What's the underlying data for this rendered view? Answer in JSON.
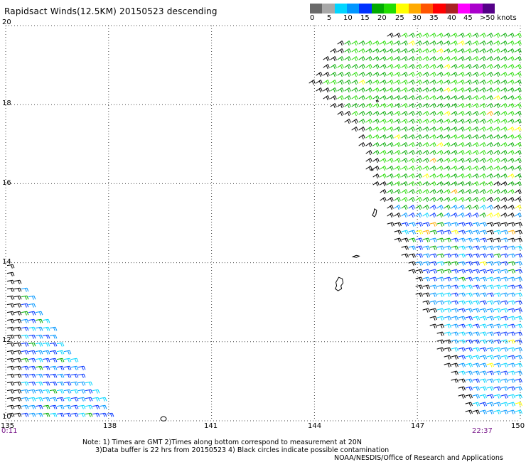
{
  "title": "Rapidsact Winds(12.5KM) 20150523 descending",
  "colorbar": {
    "colors": [
      "#6a6a6a",
      "#a8a8a8",
      "#00d5ff",
      "#0096ff",
      "#0032ff",
      "#00aa00",
      "#22dd00",
      "#ffff00",
      "#ffaa00",
      "#ff5500",
      "#ff0000",
      "#aa2222",
      "#ff00ff",
      "#aa00cc",
      "#550088"
    ],
    "labels": [
      "0",
      "5",
      "10",
      "15",
      "20",
      "25",
      "30",
      "35",
      "40",
      "45",
      ">50 knots"
    ]
  },
  "axes": {
    "lat_labels": [
      "20",
      "18",
      "16",
      "14",
      "12",
      "10"
    ],
    "lon_labels": [
      "135",
      "138",
      "141",
      "144",
      "147",
      "150"
    ],
    "lat_range": [
      10,
      20
    ],
    "lon_range": [
      135,
      150
    ],
    "grid": true,
    "grid_style": "dotted"
  },
  "times": {
    "left": "0:11",
    "right": "22:37"
  },
  "notes": {
    "line1": "Note: 1) Times are GMT 2)Times along bottom correspond to measurement at 20N",
    "line2": "3)Data buffer is 22 hrs from 20150523 4) Black circles indicate possible contamination"
  },
  "credit": "NOAA/NESDIS/Office of Research and Applications",
  "map_data": {
    "swaths": [
      {
        "name": "east-swath",
        "polygon_lonlat": [
          [
            144.6,
            19.7
          ],
          [
            150,
            19.8
          ],
          [
            150,
            10
          ],
          [
            148.4,
            10
          ],
          [
            145.0,
            17.4
          ],
          [
            143.8,
            18.5
          ]
        ]
      },
      {
        "name": "west-swath",
        "polygon_lonlat": [
          [
            135,
            14
          ],
          [
            135,
            10
          ],
          [
            138.2,
            10
          ]
        ]
      }
    ],
    "islands": [
      {
        "name": "guam",
        "lon": 144.75,
        "lat": 13.45
      },
      {
        "name": "rota",
        "lon": 145.2,
        "lat": 14.15
      },
      {
        "name": "saipan",
        "lon": 145.75,
        "lat": 15.2
      },
      {
        "name": "anatahan",
        "lon": 145.65,
        "lat": 16.35
      },
      {
        "name": "pagan",
        "lon": 145.8,
        "lat": 18.1
      },
      {
        "name": "small-islet",
        "lon": 139.6,
        "lat": 10.05
      }
    ]
  }
}
